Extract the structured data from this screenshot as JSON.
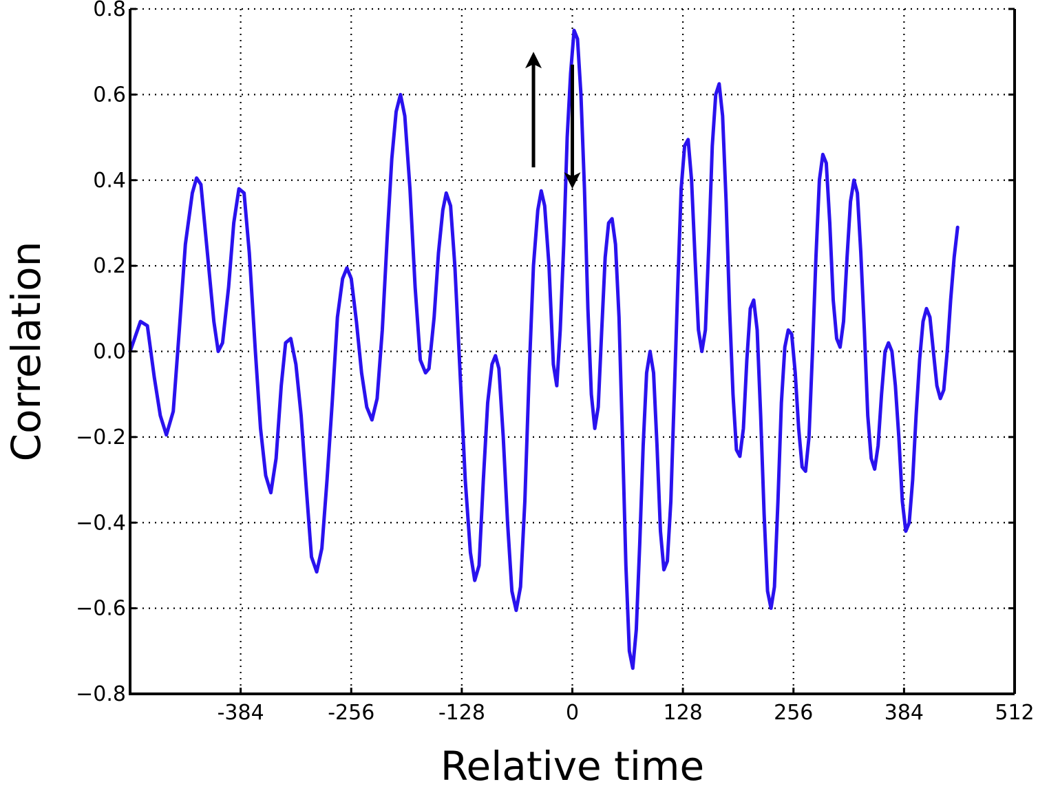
{
  "chart_data": {
    "type": "line",
    "xlabel": "Relative time",
    "ylabel": "Correlation",
    "xlim": [
      -512,
      512
    ],
    "ylim": [
      -0.8,
      0.8
    ],
    "x_ticks": [
      -384,
      -256,
      -128,
      0,
      128,
      256,
      384,
      512
    ],
    "x_tick_labels": [
      "-384",
      "-256",
      "-128",
      "0",
      "128",
      "256",
      "384",
      "512"
    ],
    "y_ticks": [
      0.8,
      0.6,
      0.4,
      0.2,
      0.0,
      -0.2,
      -0.4,
      -0.6,
      -0.8
    ],
    "y_tick_labels": [
      "0.8",
      "0.6",
      "0.4",
      "0.2",
      "0.0",
      "−0.2",
      "−0.4",
      "−0.6",
      "−0.8"
    ],
    "grid": true,
    "series": [
      {
        "color": "#2a12ee",
        "points": [
          [
            -512,
            0.0
          ],
          [
            -500,
            0.07
          ],
          [
            -492,
            0.06
          ],
          [
            -484,
            -0.06
          ],
          [
            -477,
            -0.15
          ],
          [
            -470,
            -0.195
          ],
          [
            -462,
            -0.14
          ],
          [
            -455,
            0.05
          ],
          [
            -448,
            0.25
          ],
          [
            -440,
            0.37
          ],
          [
            -435,
            0.405
          ],
          [
            -430,
            0.39
          ],
          [
            -422,
            0.22
          ],
          [
            -415,
            0.07
          ],
          [
            -410,
            0.0
          ],
          [
            -405,
            0.02
          ],
          [
            -398,
            0.15
          ],
          [
            -392,
            0.3
          ],
          [
            -386,
            0.38
          ],
          [
            -380,
            0.37
          ],
          [
            -374,
            0.23
          ],
          [
            -367,
            0.0
          ],
          [
            -361,
            -0.18
          ],
          [
            -355,
            -0.29
          ],
          [
            -349,
            -0.33
          ],
          [
            -343,
            -0.25
          ],
          [
            -337,
            -0.08
          ],
          [
            -332,
            0.02
          ],
          [
            -326,
            0.03
          ],
          [
            -320,
            -0.03
          ],
          [
            -314,
            -0.15
          ],
          [
            -308,
            -0.32
          ],
          [
            -302,
            -0.48
          ],
          [
            -296,
            -0.515
          ],
          [
            -290,
            -0.46
          ],
          [
            -284,
            -0.3
          ],
          [
            -278,
            -0.12
          ],
          [
            -272,
            0.08
          ],
          [
            -266,
            0.17
          ],
          [
            -261,
            0.195
          ],
          [
            -256,
            0.17
          ],
          [
            -250,
            0.07
          ],
          [
            -244,
            -0.05
          ],
          [
            -238,
            -0.13
          ],
          [
            -232,
            -0.16
          ],
          [
            -226,
            -0.11
          ],
          [
            -220,
            0.05
          ],
          [
            -214,
            0.28
          ],
          [
            -209,
            0.45
          ],
          [
            -204,
            0.56
          ],
          [
            -199,
            0.6
          ],
          [
            -194,
            0.55
          ],
          [
            -188,
            0.38
          ],
          [
            -182,
            0.15
          ],
          [
            -176,
            -0.02
          ],
          [
            -170,
            -0.05
          ],
          [
            -166,
            -0.04
          ],
          [
            -160,
            0.08
          ],
          [
            -155,
            0.23
          ],
          [
            -150,
            0.33
          ],
          [
            -146,
            0.37
          ],
          [
            -141,
            0.34
          ],
          [
            -136,
            0.2
          ],
          [
            -130,
            -0.05
          ],
          [
            -124,
            -0.3
          ],
          [
            -118,
            -0.47
          ],
          [
            -113,
            -0.535
          ],
          [
            -108,
            -0.5
          ],
          [
            -103,
            -0.3
          ],
          [
            -98,
            -0.12
          ],
          [
            -93,
            -0.03
          ],
          [
            -89,
            -0.01
          ],
          [
            -85,
            -0.04
          ],
          [
            -80,
            -0.2
          ],
          [
            -75,
            -0.4
          ],
          [
            -70,
            -0.56
          ],
          [
            -65,
            -0.605
          ],
          [
            -60,
            -0.55
          ],
          [
            -55,
            -0.35
          ],
          [
            -50,
            -0.05
          ],
          [
            -45,
            0.2
          ],
          [
            -40,
            0.33
          ],
          [
            -36,
            0.375
          ],
          [
            -32,
            0.34
          ],
          [
            -27,
            0.2
          ],
          [
            -22,
            -0.03
          ],
          [
            -18,
            -0.08
          ],
          [
            -14,
            0.05
          ],
          [
            -10,
            0.25
          ],
          [
            -6,
            0.5
          ],
          [
            -2,
            0.65
          ],
          [
            2,
            0.75
          ],
          [
            6,
            0.73
          ],
          [
            10,
            0.6
          ],
          [
            14,
            0.38
          ],
          [
            18,
            0.1
          ],
          [
            22,
            -0.1
          ],
          [
            26,
            -0.18
          ],
          [
            30,
            -0.13
          ],
          [
            34,
            0.05
          ],
          [
            38,
            0.22
          ],
          [
            42,
            0.3
          ],
          [
            46,
            0.31
          ],
          [
            50,
            0.25
          ],
          [
            54,
            0.08
          ],
          [
            58,
            -0.2
          ],
          [
            62,
            -0.5
          ],
          [
            66,
            -0.7
          ],
          [
            70,
            -0.74
          ],
          [
            74,
            -0.65
          ],
          [
            78,
            -0.45
          ],
          [
            82,
            -0.22
          ],
          [
            86,
            -0.05
          ],
          [
            90,
            0.0
          ],
          [
            94,
            -0.05
          ],
          [
            98,
            -0.22
          ],
          [
            102,
            -0.42
          ],
          [
            106,
            -0.51
          ],
          [
            110,
            -0.49
          ],
          [
            114,
            -0.35
          ],
          [
            118,
            -0.1
          ],
          [
            122,
            0.15
          ],
          [
            126,
            0.38
          ],
          [
            130,
            0.48
          ],
          [
            134,
            0.495
          ],
          [
            138,
            0.4
          ],
          [
            142,
            0.22
          ],
          [
            146,
            0.05
          ],
          [
            150,
            0.0
          ],
          [
            154,
            0.05
          ],
          [
            158,
            0.25
          ],
          [
            162,
            0.48
          ],
          [
            166,
            0.6
          ],
          [
            170,
            0.625
          ],
          [
            174,
            0.55
          ],
          [
            178,
            0.35
          ],
          [
            182,
            0.1
          ],
          [
            186,
            -0.1
          ],
          [
            190,
            -0.23
          ],
          [
            194,
            -0.245
          ],
          [
            198,
            -0.18
          ],
          [
            202,
            -0.02
          ],
          [
            206,
            0.1
          ],
          [
            210,
            0.12
          ],
          [
            214,
            0.05
          ],
          [
            218,
            -0.15
          ],
          [
            222,
            -0.38
          ],
          [
            226,
            -0.56
          ],
          [
            230,
            -0.6
          ],
          [
            234,
            -0.55
          ],
          [
            238,
            -0.35
          ],
          [
            242,
            -0.12
          ],
          [
            246,
            0.01
          ],
          [
            250,
            0.05
          ],
          [
            254,
            0.04
          ],
          [
            258,
            -0.05
          ],
          [
            262,
            -0.18
          ],
          [
            266,
            -0.27
          ],
          [
            270,
            -0.28
          ],
          [
            274,
            -0.2
          ],
          [
            278,
            0.0
          ],
          [
            282,
            0.22
          ],
          [
            286,
            0.4
          ],
          [
            290,
            0.46
          ],
          [
            294,
            0.44
          ],
          [
            298,
            0.3
          ],
          [
            302,
            0.12
          ],
          [
            306,
            0.03
          ],
          [
            310,
            0.01
          ],
          [
            314,
            0.07
          ],
          [
            318,
            0.22
          ],
          [
            322,
            0.35
          ],
          [
            326,
            0.4
          ],
          [
            330,
            0.37
          ],
          [
            334,
            0.23
          ],
          [
            338,
            0.05
          ],
          [
            342,
            -0.15
          ],
          [
            346,
            -0.25
          ],
          [
            350,
            -0.275
          ],
          [
            354,
            -0.22
          ],
          [
            358,
            -0.1
          ],
          [
            362,
            0.0
          ],
          [
            366,
            0.02
          ],
          [
            370,
            0.0
          ],
          [
            374,
            -0.08
          ],
          [
            378,
            -0.2
          ],
          [
            382,
            -0.35
          ],
          [
            386,
            -0.42
          ],
          [
            390,
            -0.4
          ],
          [
            394,
            -0.3
          ],
          [
            398,
            -0.15
          ],
          [
            402,
            -0.02
          ],
          [
            406,
            0.07
          ],
          [
            410,
            0.1
          ],
          [
            414,
            0.08
          ],
          [
            418,
            0.0
          ],
          [
            422,
            -0.08
          ],
          [
            426,
            -0.11
          ],
          [
            430,
            -0.09
          ],
          [
            434,
            0.0
          ],
          [
            438,
            0.12
          ],
          [
            442,
            0.22
          ],
          [
            446,
            0.29
          ]
        ]
      }
    ],
    "annotations": [
      {
        "type": "arrow",
        "direction": "up",
        "x": -45,
        "y_from": 0.43,
        "y_to": 0.7
      },
      {
        "type": "arrow",
        "direction": "down",
        "x": 0,
        "y_from": 0.67,
        "y_to": 0.38
      }
    ]
  }
}
